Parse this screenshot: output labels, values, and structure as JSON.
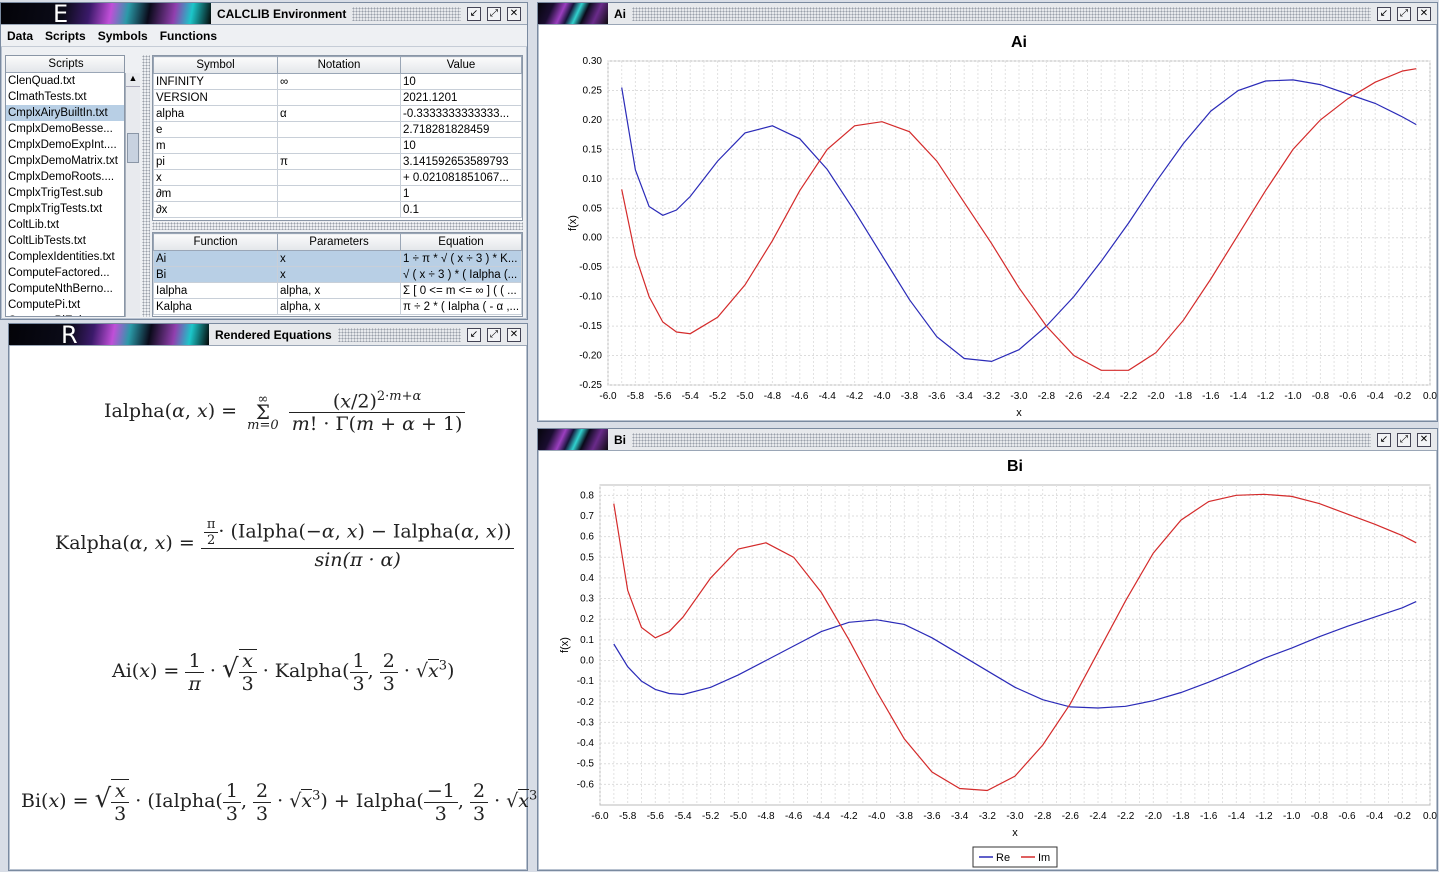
{
  "env": {
    "title": "CALCLIB Environment",
    "logo_letter": "E",
    "menu": [
      "Data",
      "Scripts",
      "Symbols",
      "Functions"
    ],
    "scripts_header": "Scripts",
    "scripts": [
      "ClenQuad.txt",
      "ClmathTests.txt",
      "CmplxAiryBuiltIn.txt",
      "CmplxDemoBesse...",
      "CmplxDemoExpInt....",
      "CmplxDemoMatrix.txt",
      "CmplxDemoRoots....",
      "CmplxTrigTest.sub",
      "CmplxTrigTests.txt",
      "ColtLib.txt",
      "ColtLibTests.txt",
      "ComplexIdentities.txt",
      "ComputeFactored...",
      "ComputeNthBerno...",
      "ComputePi.txt",
      "ComputePiEuler.txt"
    ],
    "selected_script": 2,
    "symbol_headers": [
      "Symbol",
      "Notation",
      "Value"
    ],
    "symbols": [
      [
        "INFINITY",
        "∞",
        "10"
      ],
      [
        "VERSION",
        "",
        "2021.1201"
      ],
      [
        "alpha",
        "α",
        "-0.3333333333333..."
      ],
      [
        "e",
        "",
        "2.718281828459"
      ],
      [
        "m",
        "",
        "10"
      ],
      [
        "pi",
        "π",
        "3.141592653589793"
      ],
      [
        "x",
        "",
        " + 0.021081851067..."
      ],
      [
        "∂m",
        "",
        "1"
      ],
      [
        "∂x",
        "",
        "0.1"
      ]
    ],
    "function_headers": [
      "Function",
      "Parameters",
      "Equation"
    ],
    "functions": [
      [
        "Ai",
        "x",
        "1 ÷ π * √ ( x ÷ 3 ) * K..."
      ],
      [
        "Bi",
        "x",
        "√ ( x ÷ 3 ) * ( Ialpha (..."
      ],
      [
        "Ialpha",
        "alpha, x",
        "Σ [ 0 <= m <= ∞ ] ( ( ..."
      ],
      [
        "Kalpha",
        "alpha, x",
        "π ÷ 2 * ( Ialpha ( - α ,..."
      ]
    ],
    "selected_functions": [
      0,
      1
    ]
  },
  "rendered": {
    "title": "Rendered Equations",
    "logo_letter": "R"
  },
  "ai_window": {
    "title": "Ai",
    "chart_data": {
      "type": "line",
      "title": "Ai",
      "xlabel": "x",
      "ylabel": "f(x)",
      "xlim": [
        -6.0,
        0.0
      ],
      "ylim": [
        -0.25,
        0.3
      ],
      "xticks": [
        "-6.0",
        "-5.8",
        "-5.6",
        "-5.4",
        "-5.2",
        "-5.0",
        "-4.8",
        "-4.6",
        "-4.4",
        "-4.2",
        "-4.0",
        "-3.8",
        "-3.6",
        "-3.4",
        "-3.2",
        "-3.0",
        "-2.8",
        "-2.6",
        "-2.4",
        "-2.2",
        "-2.0",
        "-1.8",
        "-1.6",
        "-1.4",
        "-1.2",
        "-1.0",
        "-0.8",
        "-0.6",
        "-0.4",
        "-0.2",
        "0.0"
      ],
      "yticks": [
        "0.30",
        "0.25",
        "0.20",
        "0.15",
        "0.10",
        "0.05",
        "0.00",
        "-0.05",
        "-0.10",
        "-0.15",
        "-0.20",
        "-0.25"
      ],
      "grid": true,
      "series": [
        {
          "name": "Re",
          "color": "#2b2bb8",
          "x": [
            -5.9,
            -5.8,
            -5.7,
            -5.6,
            -5.5,
            -5.4,
            -5.2,
            -5.0,
            -4.8,
            -4.6,
            -4.4,
            -4.2,
            -4.0,
            -3.8,
            -3.6,
            -3.4,
            -3.2,
            -3.0,
            -2.8,
            -2.6,
            -2.4,
            -2.2,
            -2.0,
            -1.8,
            -1.6,
            -1.4,
            -1.2,
            -1.0,
            -0.8,
            -0.6,
            -0.4,
            -0.2,
            -0.1
          ],
          "values": [
            0.255,
            0.115,
            0.053,
            0.038,
            0.047,
            0.07,
            0.13,
            0.178,
            0.19,
            0.168,
            0.116,
            0.045,
            -0.03,
            -0.105,
            -0.168,
            -0.205,
            -0.21,
            -0.19,
            -0.15,
            -0.1,
            -0.04,
            0.025,
            0.095,
            0.16,
            0.215,
            0.25,
            0.266,
            0.268,
            0.26,
            0.244,
            0.228,
            0.205,
            0.192
          ]
        },
        {
          "name": "Im",
          "color": "#d42b2b",
          "x": [
            -5.9,
            -5.8,
            -5.7,
            -5.6,
            -5.5,
            -5.4,
            -5.2,
            -5.0,
            -4.8,
            -4.6,
            -4.4,
            -4.2,
            -4.0,
            -3.8,
            -3.6,
            -3.4,
            -3.2,
            -3.0,
            -2.8,
            -2.6,
            -2.4,
            -2.2,
            -2.0,
            -1.8,
            -1.6,
            -1.4,
            -1.2,
            -1.0,
            -0.8,
            -0.6,
            -0.4,
            -0.2,
            -0.1
          ],
          "values": [
            0.082,
            -0.03,
            -0.1,
            -0.143,
            -0.16,
            -0.163,
            -0.135,
            -0.08,
            -0.005,
            0.08,
            0.15,
            0.19,
            0.197,
            0.18,
            0.13,
            0.06,
            -0.01,
            -0.085,
            -0.15,
            -0.2,
            -0.225,
            -0.225,
            -0.195,
            -0.14,
            -0.07,
            0.005,
            0.08,
            0.15,
            0.2,
            0.236,
            0.264,
            0.283,
            0.287
          ]
        }
      ]
    }
  },
  "bi_window": {
    "title": "Bi",
    "chart_data": {
      "type": "line",
      "title": "Bi",
      "xlabel": "x",
      "ylabel": "f(x)",
      "xlim": [
        -6.0,
        0.0
      ],
      "ylim": [
        -0.7,
        0.85
      ],
      "xticks": [
        "-6.0",
        "-5.8",
        "-5.6",
        "-5.4",
        "-5.2",
        "-5.0",
        "-4.8",
        "-4.6",
        "-4.4",
        "-4.2",
        "-4.0",
        "-3.8",
        "-3.6",
        "-3.4",
        "-3.2",
        "-3.0",
        "-2.8",
        "-2.6",
        "-2.4",
        "-2.2",
        "-2.0",
        "-1.8",
        "-1.6",
        "-1.4",
        "-1.2",
        "-1.0",
        "-0.8",
        "-0.6",
        "-0.4",
        "-0.2",
        "0.0"
      ],
      "yticks": [
        "0.8",
        "0.7",
        "0.6",
        "0.5",
        "0.4",
        "0.3",
        "0.2",
        "0.1",
        "0.0",
        "-0.1",
        "-0.2",
        "-0.3",
        "-0.4",
        "-0.5",
        "-0.6"
      ],
      "grid": true,
      "legend": [
        "Re",
        "Im"
      ],
      "legend_position": "bottom",
      "series": [
        {
          "name": "Re",
          "color": "#2b2bb8",
          "x": [
            -5.9,
            -5.8,
            -5.7,
            -5.6,
            -5.5,
            -5.4,
            -5.2,
            -5.0,
            -4.8,
            -4.6,
            -4.4,
            -4.2,
            -4.0,
            -3.8,
            -3.6,
            -3.4,
            -3.2,
            -3.0,
            -2.8,
            -2.6,
            -2.4,
            -2.2,
            -2.0,
            -1.8,
            -1.6,
            -1.4,
            -1.2,
            -1.0,
            -0.8,
            -0.6,
            -0.4,
            -0.2,
            -0.1
          ],
          "values": [
            0.08,
            -0.03,
            -0.1,
            -0.14,
            -0.16,
            -0.165,
            -0.13,
            -0.07,
            0.0,
            0.07,
            0.14,
            0.185,
            0.197,
            0.175,
            0.11,
            0.03,
            -0.05,
            -0.13,
            -0.19,
            -0.225,
            -0.23,
            -0.222,
            -0.195,
            -0.155,
            -0.105,
            -0.05,
            0.01,
            0.06,
            0.115,
            0.165,
            0.21,
            0.255,
            0.285
          ]
        },
        {
          "name": "Im",
          "color": "#d42b2b",
          "x": [
            -5.9,
            -5.8,
            -5.7,
            -5.6,
            -5.5,
            -5.4,
            -5.2,
            -5.0,
            -4.8,
            -4.6,
            -4.4,
            -4.2,
            -4.0,
            -3.8,
            -3.6,
            -3.4,
            -3.2,
            -3.0,
            -2.8,
            -2.6,
            -2.4,
            -2.2,
            -2.0,
            -1.8,
            -1.6,
            -1.4,
            -1.2,
            -1.0,
            -0.8,
            -0.6,
            -0.4,
            -0.2,
            -0.1
          ],
          "values": [
            0.76,
            0.34,
            0.16,
            0.11,
            0.14,
            0.21,
            0.4,
            0.54,
            0.57,
            0.5,
            0.33,
            0.1,
            -0.15,
            -0.38,
            -0.54,
            -0.62,
            -0.63,
            -0.56,
            -0.41,
            -0.21,
            0.04,
            0.29,
            0.52,
            0.68,
            0.77,
            0.8,
            0.805,
            0.795,
            0.76,
            0.71,
            0.66,
            0.605,
            0.57
          ]
        }
      ]
    }
  }
}
